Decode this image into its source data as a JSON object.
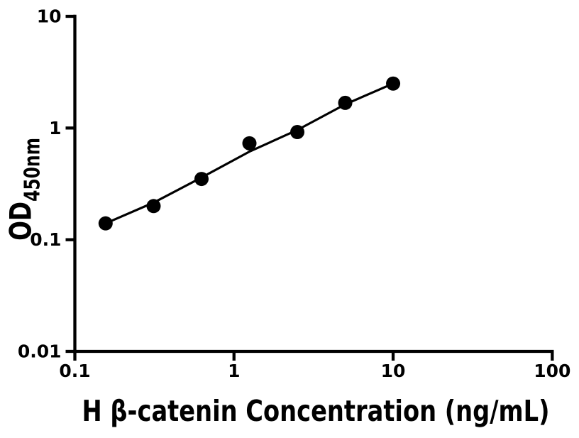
{
  "figure": {
    "background_color": "#ffffff",
    "ink_color": "#000000"
  },
  "chart_data": {
    "type": "scatter",
    "subtype": "ELISA standard curve with fitted line",
    "title": "",
    "xlabel": "H β-catenin Concentration (ng/mL)",
    "ylabel_main": "OD",
    "ylabel_sub": "450nm",
    "x_scale": "log10",
    "y_scale": "log10",
    "xlim": [
      0.1,
      100
    ],
    "ylim": [
      0.01,
      10
    ],
    "x_tick_values": [
      0.1,
      1,
      10,
      100
    ],
    "x_tick_labels": [
      "0.1",
      "1",
      "10",
      "100"
    ],
    "y_tick_values": [
      0.01,
      0.1,
      1,
      10
    ],
    "y_tick_labels": [
      "0.01",
      "0.1",
      "1",
      "10"
    ],
    "grid": false,
    "legend": "none",
    "marker": {
      "shape": "filled-circle",
      "color": "#000000"
    },
    "series": [
      {
        "name": "standard curve data points",
        "x": [
          0.156,
          0.3125,
          0.625,
          1.25,
          2.5,
          5,
          10
        ],
        "y": [
          0.14,
          0.2,
          0.35,
          0.73,
          0.92,
          1.68,
          2.5
        ]
      }
    ],
    "fit_curve": {
      "name": "fitted standard curve",
      "x": [
        0.156,
        0.3125,
        0.625,
        1.25,
        2.5,
        5,
        10
      ],
      "y": [
        0.14,
        0.215,
        0.36,
        0.615,
        0.96,
        1.63,
        2.5
      ]
    }
  }
}
